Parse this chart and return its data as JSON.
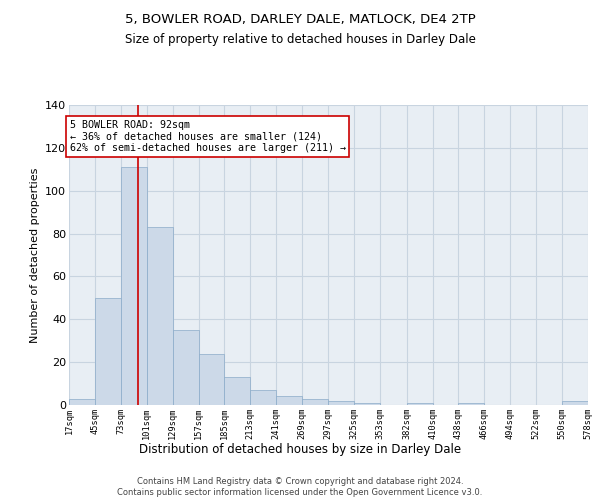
{
  "title1": "5, BOWLER ROAD, DARLEY DALE, MATLOCK, DE4 2TP",
  "title2": "Size of property relative to detached houses in Darley Dale",
  "xlabel": "Distribution of detached houses by size in Darley Dale",
  "ylabel": "Number of detached properties",
  "bar_color": "#ccd9e8",
  "bar_edge_color": "#8aaac8",
  "grid_color": "#c8d4e0",
  "vline_value": 92,
  "vline_color": "#cc0000",
  "annotation_text": "5 BOWLER ROAD: 92sqm\n← 36% of detached houses are smaller (124)\n62% of semi-detached houses are larger (211) →",
  "annotation_box_color": "#ffffff",
  "annotation_box_edge": "#cc0000",
  "footer": "Contains HM Land Registry data © Crown copyright and database right 2024.\nContains public sector information licensed under the Open Government Licence v3.0.",
  "bin_edges": [
    17,
    45,
    73,
    101,
    129,
    157,
    185,
    213,
    241,
    269,
    297,
    325,
    353,
    382,
    410,
    438,
    466,
    494,
    522,
    550,
    578
  ],
  "bin_counts": [
    3,
    50,
    111,
    83,
    35,
    24,
    13,
    7,
    4,
    3,
    2,
    1,
    0,
    1,
    0,
    1,
    0,
    0,
    0,
    2
  ],
  "ylim": [
    0,
    140
  ],
  "yticks": [
    0,
    20,
    40,
    60,
    80,
    100,
    120,
    140
  ],
  "background_color": "#e8eef4"
}
